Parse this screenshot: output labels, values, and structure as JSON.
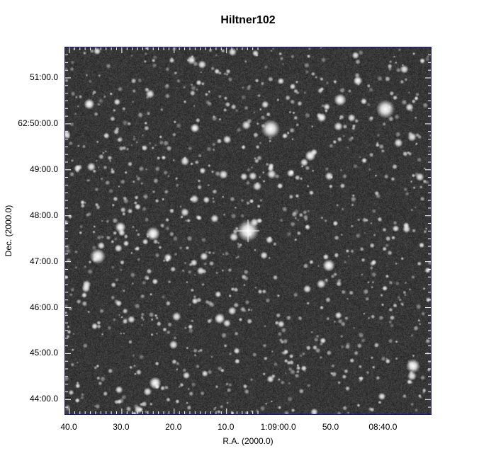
{
  "title": "Hiltner102",
  "chart_data": {
    "type": "image",
    "title": "Hiltner102",
    "xlabel": "R.A. (2000.0)",
    "ylabel": "Dec. (2000.0)",
    "x_ticks": [
      "40.0",
      "30.0",
      "20.0",
      "10.0",
      "1:09:00.0",
      "50.0",
      "08:40.0"
    ],
    "y_ticks": [
      "51:00.0",
      "62:50:00.0",
      "49:00.0",
      "48:00.0",
      "47:00.0",
      "46:00.0",
      "45:00.0",
      "44:00.0"
    ],
    "frame_color": "#1a1a8c",
    "image": "grayscale star field"
  }
}
